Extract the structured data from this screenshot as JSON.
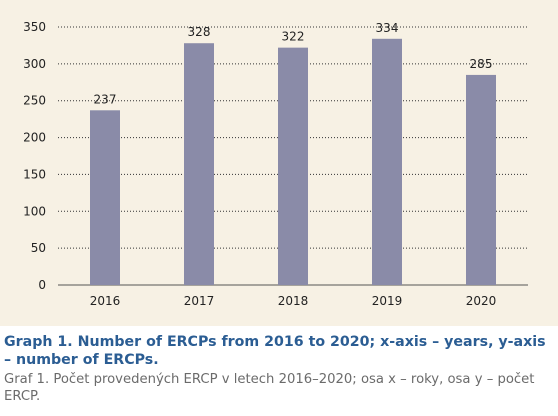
{
  "chart_data": {
    "type": "bar",
    "categories": [
      "2016",
      "2017",
      "2018",
      "2019",
      "2020"
    ],
    "values": [
      237,
      328,
      322,
      334,
      285
    ],
    "data_labels": [
      "237",
      "328",
      "322",
      "334",
      "285"
    ],
    "yticks": [
      "0",
      "50",
      "100",
      "150",
      "200",
      "250",
      "300",
      "350"
    ],
    "ylim": [
      0,
      350
    ],
    "grid": "dotted horizontal",
    "title": "",
    "xlabel": "",
    "ylabel": ""
  },
  "colors": {
    "bar": "#8a8ba8",
    "panel_background": "#f7f1e4",
    "caption_en": "#2b5d93",
    "caption_cz": "#6b6b6b"
  },
  "caption": {
    "en": "Graph 1. Number of ERCPs from 2016 to 2020; x-axis – years, y-axis – number of ERCPs.",
    "cz": "Graf 1. Počet provedených ERCP v letech 2016–2020; osa x – roky, osa y – počet ERCP."
  }
}
